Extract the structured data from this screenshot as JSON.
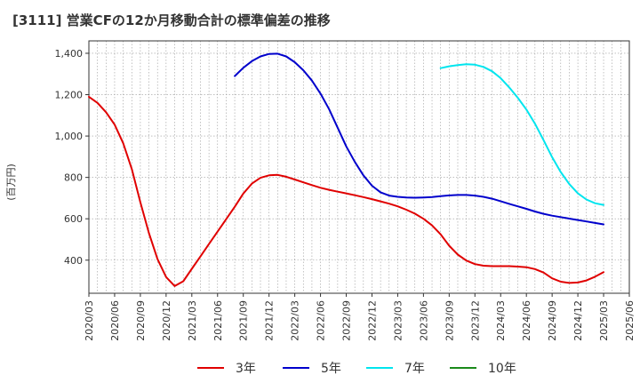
{
  "chart_data": {
    "type": "line",
    "title": "[3111]  営業CFの12か月移動合計の標準偏差の推移",
    "ylabel": "(百万円)",
    "xlabel": "",
    "ylim": [
      240,
      1460
    ],
    "yticks": [
      400,
      600,
      800,
      1000,
      1200,
      1400
    ],
    "ytick_labels": [
      "400",
      "600",
      "800",
      "1,000",
      "1,200",
      "1,400"
    ],
    "x_ticks": [
      "2020/03",
      "2020/06",
      "2020/09",
      "2020/12",
      "2021/03",
      "2021/06",
      "2021/09",
      "2021/12",
      "2022/03",
      "2022/06",
      "2022/09",
      "2022/12",
      "2023/03",
      "2023/06",
      "2023/09",
      "2023/12",
      "2024/03",
      "2024/06",
      "2024/09",
      "2024/12",
      "2025/03",
      "2025/06"
    ],
    "grid": true,
    "legend_position": "bottom",
    "series": [
      {
        "name": "3年",
        "color": "#e00000",
        "values": [
          [
            "2020/03",
            1190
          ],
          [
            "2020/04",
            1160
          ],
          [
            "2020/05",
            1115
          ],
          [
            "2020/06",
            1055
          ],
          [
            "2020/07",
            965
          ],
          [
            "2020/08",
            840
          ],
          [
            "2020/09",
            680
          ],
          [
            "2020/10",
            530
          ],
          [
            "2020/11",
            405
          ],
          [
            "2020/12",
            318
          ],
          [
            "2021/01",
            275
          ],
          [
            "2021/02",
            298
          ],
          [
            "2021/03",
            358
          ],
          [
            "2021/04",
            418
          ],
          [
            "2021/05",
            478
          ],
          [
            "2021/06",
            538
          ],
          [
            "2021/07",
            598
          ],
          [
            "2021/08",
            658
          ],
          [
            "2021/09",
            722
          ],
          [
            "2021/10",
            770
          ],
          [
            "2021/11",
            798
          ],
          [
            "2021/12",
            810
          ],
          [
            "2022/01",
            812
          ],
          [
            "2022/02",
            803
          ],
          [
            "2022/03",
            790
          ],
          [
            "2022/04",
            776
          ],
          [
            "2022/05",
            763
          ],
          [
            "2022/06",
            750
          ],
          [
            "2022/07",
            740
          ],
          [
            "2022/08",
            731
          ],
          [
            "2022/09",
            723
          ],
          [
            "2022/10",
            714
          ],
          [
            "2022/11",
            705
          ],
          [
            "2022/12",
            695
          ],
          [
            "2023/01",
            684
          ],
          [
            "2023/02",
            673
          ],
          [
            "2023/03",
            660
          ],
          [
            "2023/04",
            644
          ],
          [
            "2023/05",
            625
          ],
          [
            "2023/06",
            600
          ],
          [
            "2023/07",
            568
          ],
          [
            "2023/08",
            525
          ],
          [
            "2023/09",
            470
          ],
          [
            "2023/10",
            427
          ],
          [
            "2023/11",
            398
          ],
          [
            "2023/12",
            381
          ],
          [
            "2024/01",
            373
          ],
          [
            "2024/02",
            371
          ],
          [
            "2024/03",
            371
          ],
          [
            "2024/04",
            371
          ],
          [
            "2024/05",
            369
          ],
          [
            "2024/06",
            366
          ],
          [
            "2024/07",
            357
          ],
          [
            "2024/08",
            340
          ],
          [
            "2024/09",
            312
          ],
          [
            "2024/10",
            296
          ],
          [
            "2024/11",
            290
          ],
          [
            "2024/12",
            292
          ],
          [
            "2025/01",
            302
          ],
          [
            "2025/02",
            320
          ],
          [
            "2025/03",
            342
          ]
        ]
      },
      {
        "name": "5年",
        "color": "#0000cc",
        "values": [
          [
            "2021/08",
            1290
          ],
          [
            "2021/09",
            1330
          ],
          [
            "2021/10",
            1362
          ],
          [
            "2021/11",
            1385
          ],
          [
            "2021/12",
            1397
          ],
          [
            "2022/01",
            1398
          ],
          [
            "2022/02",
            1385
          ],
          [
            "2022/03",
            1357
          ],
          [
            "2022/04",
            1318
          ],
          [
            "2022/05",
            1268
          ],
          [
            "2022/06",
            1205
          ],
          [
            "2022/07",
            1130
          ],
          [
            "2022/08",
            1040
          ],
          [
            "2022/09",
            950
          ],
          [
            "2022/10",
            875
          ],
          [
            "2022/11",
            810
          ],
          [
            "2022/12",
            760
          ],
          [
            "2023/01",
            728
          ],
          [
            "2023/02",
            712
          ],
          [
            "2023/03",
            706
          ],
          [
            "2023/04",
            703
          ],
          [
            "2023/05",
            702
          ],
          [
            "2023/06",
            703
          ],
          [
            "2023/07",
            705
          ],
          [
            "2023/08",
            709
          ],
          [
            "2023/09",
            713
          ],
          [
            "2023/10",
            715
          ],
          [
            "2023/11",
            715
          ],
          [
            "2023/12",
            712
          ],
          [
            "2024/01",
            706
          ],
          [
            "2024/02",
            697
          ],
          [
            "2024/03",
            685
          ],
          [
            "2024/04",
            672
          ],
          [
            "2024/05",
            660
          ],
          [
            "2024/06",
            648
          ],
          [
            "2024/07",
            635
          ],
          [
            "2024/08",
            624
          ],
          [
            "2024/09",
            615
          ],
          [
            "2024/10",
            608
          ],
          [
            "2024/11",
            601
          ],
          [
            "2024/12",
            594
          ],
          [
            "2025/01",
            587
          ],
          [
            "2025/02",
            580
          ],
          [
            "2025/03",
            573
          ]
        ]
      },
      {
        "name": "7年",
        "color": "#00e5ee",
        "values": [
          [
            "2023/08",
            1328
          ],
          [
            "2023/09",
            1337
          ],
          [
            "2023/10",
            1343
          ],
          [
            "2023/11",
            1347
          ],
          [
            "2023/12",
            1345
          ],
          [
            "2024/01",
            1334
          ],
          [
            "2024/02",
            1313
          ],
          [
            "2024/03",
            1280
          ],
          [
            "2024/04",
            1235
          ],
          [
            "2024/05",
            1185
          ],
          [
            "2024/06",
            1128
          ],
          [
            "2024/07",
            1060
          ],
          [
            "2024/08",
            980
          ],
          [
            "2024/09",
            898
          ],
          [
            "2024/10",
            826
          ],
          [
            "2024/11",
            768
          ],
          [
            "2024/12",
            723
          ],
          [
            "2025/01",
            693
          ],
          [
            "2025/02",
            675
          ],
          [
            "2025/03",
            667
          ]
        ]
      },
      {
        "name": "10年",
        "color": "#1a8a1a",
        "values": []
      }
    ]
  }
}
